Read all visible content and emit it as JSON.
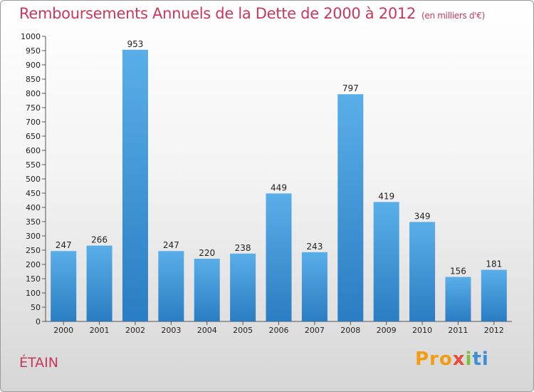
{
  "header": {
    "title": "Remboursements Annuels de la Dette de 2000 à 2012",
    "subtitle": "(en milliers d'€)"
  },
  "footer": {
    "commune": "ÉTAIN",
    "logo": [
      "Pro",
      "x",
      "i",
      "ti"
    ]
  },
  "colors": {
    "title": "#c8385a",
    "bar_top": "#5aaee8",
    "bar_bottom": "#2a7dc2"
  },
  "chart_data": {
    "type": "bar",
    "title": "Remboursements Annuels de la Dette de 2000 à 2012",
    "xlabel": "",
    "ylabel": "",
    "categories": [
      "2000",
      "2001",
      "2002",
      "2003",
      "2004",
      "2005",
      "2006",
      "2007",
      "2008",
      "2009",
      "2010",
      "2011",
      "2012"
    ],
    "values": [
      247,
      266,
      953,
      247,
      220,
      238,
      449,
      243,
      797,
      419,
      349,
      156,
      181
    ],
    "ylim": [
      0,
      1000
    ],
    "yticks": [
      0,
      50,
      100,
      150,
      200,
      250,
      300,
      350,
      400,
      450,
      500,
      550,
      600,
      650,
      700,
      750,
      800,
      850,
      900,
      950,
      1000
    ],
    "grid": false,
    "legend": "none"
  }
}
